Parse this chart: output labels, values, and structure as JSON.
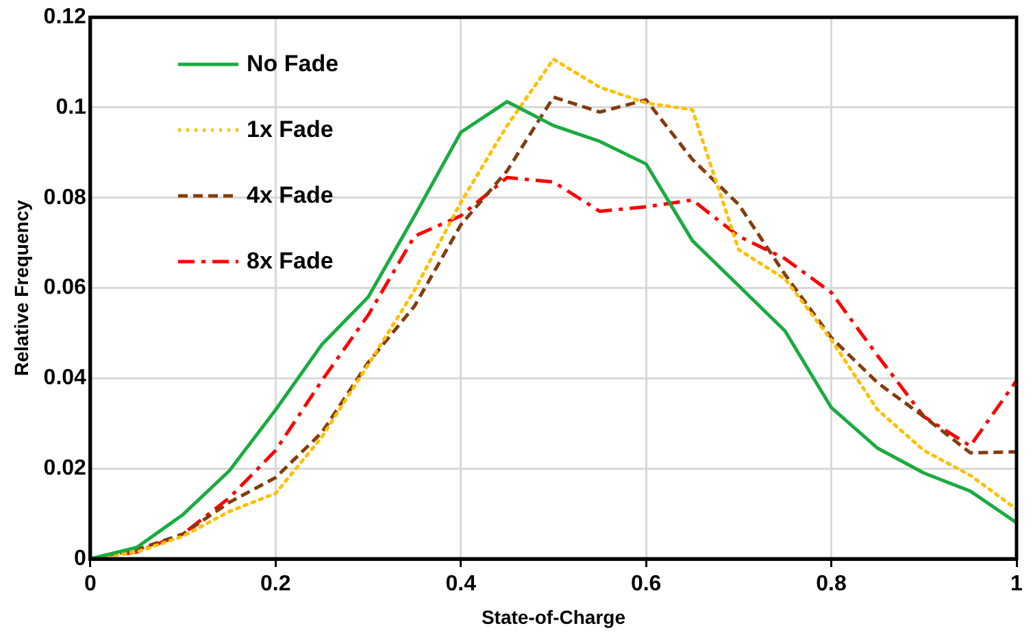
{
  "chart_data": {
    "type": "line",
    "xlabel": "State-of-Charge",
    "ylabel": "Relative Frequency",
    "x": [
      0,
      0.05,
      0.1,
      0.15,
      0.2,
      0.25,
      0.3,
      0.35,
      0.4,
      0.45,
      0.5,
      0.55,
      0.6,
      0.65,
      0.7,
      0.75,
      0.8,
      0.85,
      0.9,
      0.95,
      1
    ],
    "series": [
      {
        "name": "No Fade",
        "color": "#1aab40",
        "line_style": "solid",
        "values": [
          0,
          0.0025,
          0.0098,
          0.0195,
          0.033,
          0.0475,
          0.058,
          0.076,
          0.0945,
          0.1013,
          0.096,
          0.0925,
          0.0875,
          0.0705,
          0.0605,
          0.0505,
          0.0335,
          0.0245,
          0.019,
          0.015,
          0.008
        ]
      },
      {
        "name": "1x Fade",
        "color": "#ffc000",
        "line_style": "dotted",
        "values": [
          0,
          0.0015,
          0.005,
          0.0105,
          0.0145,
          0.027,
          0.043,
          0.0595,
          0.079,
          0.096,
          0.1107,
          0.1045,
          0.101,
          0.0995,
          0.0685,
          0.062,
          0.0485,
          0.033,
          0.024,
          0.0185,
          0.011
        ]
      },
      {
        "name": "4x Fade",
        "color": "#843c0c",
        "line_style": "dashed",
        "values": [
          0,
          0.002,
          0.0055,
          0.0125,
          0.018,
          0.028,
          0.0435,
          0.056,
          0.074,
          0.086,
          0.1023,
          0.099,
          0.1017,
          0.0885,
          0.0785,
          0.063,
          0.049,
          0.039,
          0.0315,
          0.0235,
          0.0237
        ]
      },
      {
        "name": "8x Fade",
        "color": "#ff0000",
        "line_style": "dashdot",
        "values": [
          0,
          0.0015,
          0.0055,
          0.0135,
          0.024,
          0.0395,
          0.054,
          0.0715,
          0.076,
          0.0845,
          0.0835,
          0.077,
          0.078,
          0.0795,
          0.0715,
          0.0665,
          0.059,
          0.045,
          0.0315,
          0.025,
          0.0395
        ]
      }
    ],
    "xlim": [
      0,
      1
    ],
    "xticks": [
      0,
      0.2,
      0.4,
      0.6,
      0.8,
      1
    ],
    "ylim": [
      0,
      0.12
    ],
    "yticks": [
      0,
      0.02,
      0.04,
      0.06,
      0.08,
      0.1,
      0.12
    ],
    "grid": true,
    "legend": "top left",
    "marker": "none"
  }
}
